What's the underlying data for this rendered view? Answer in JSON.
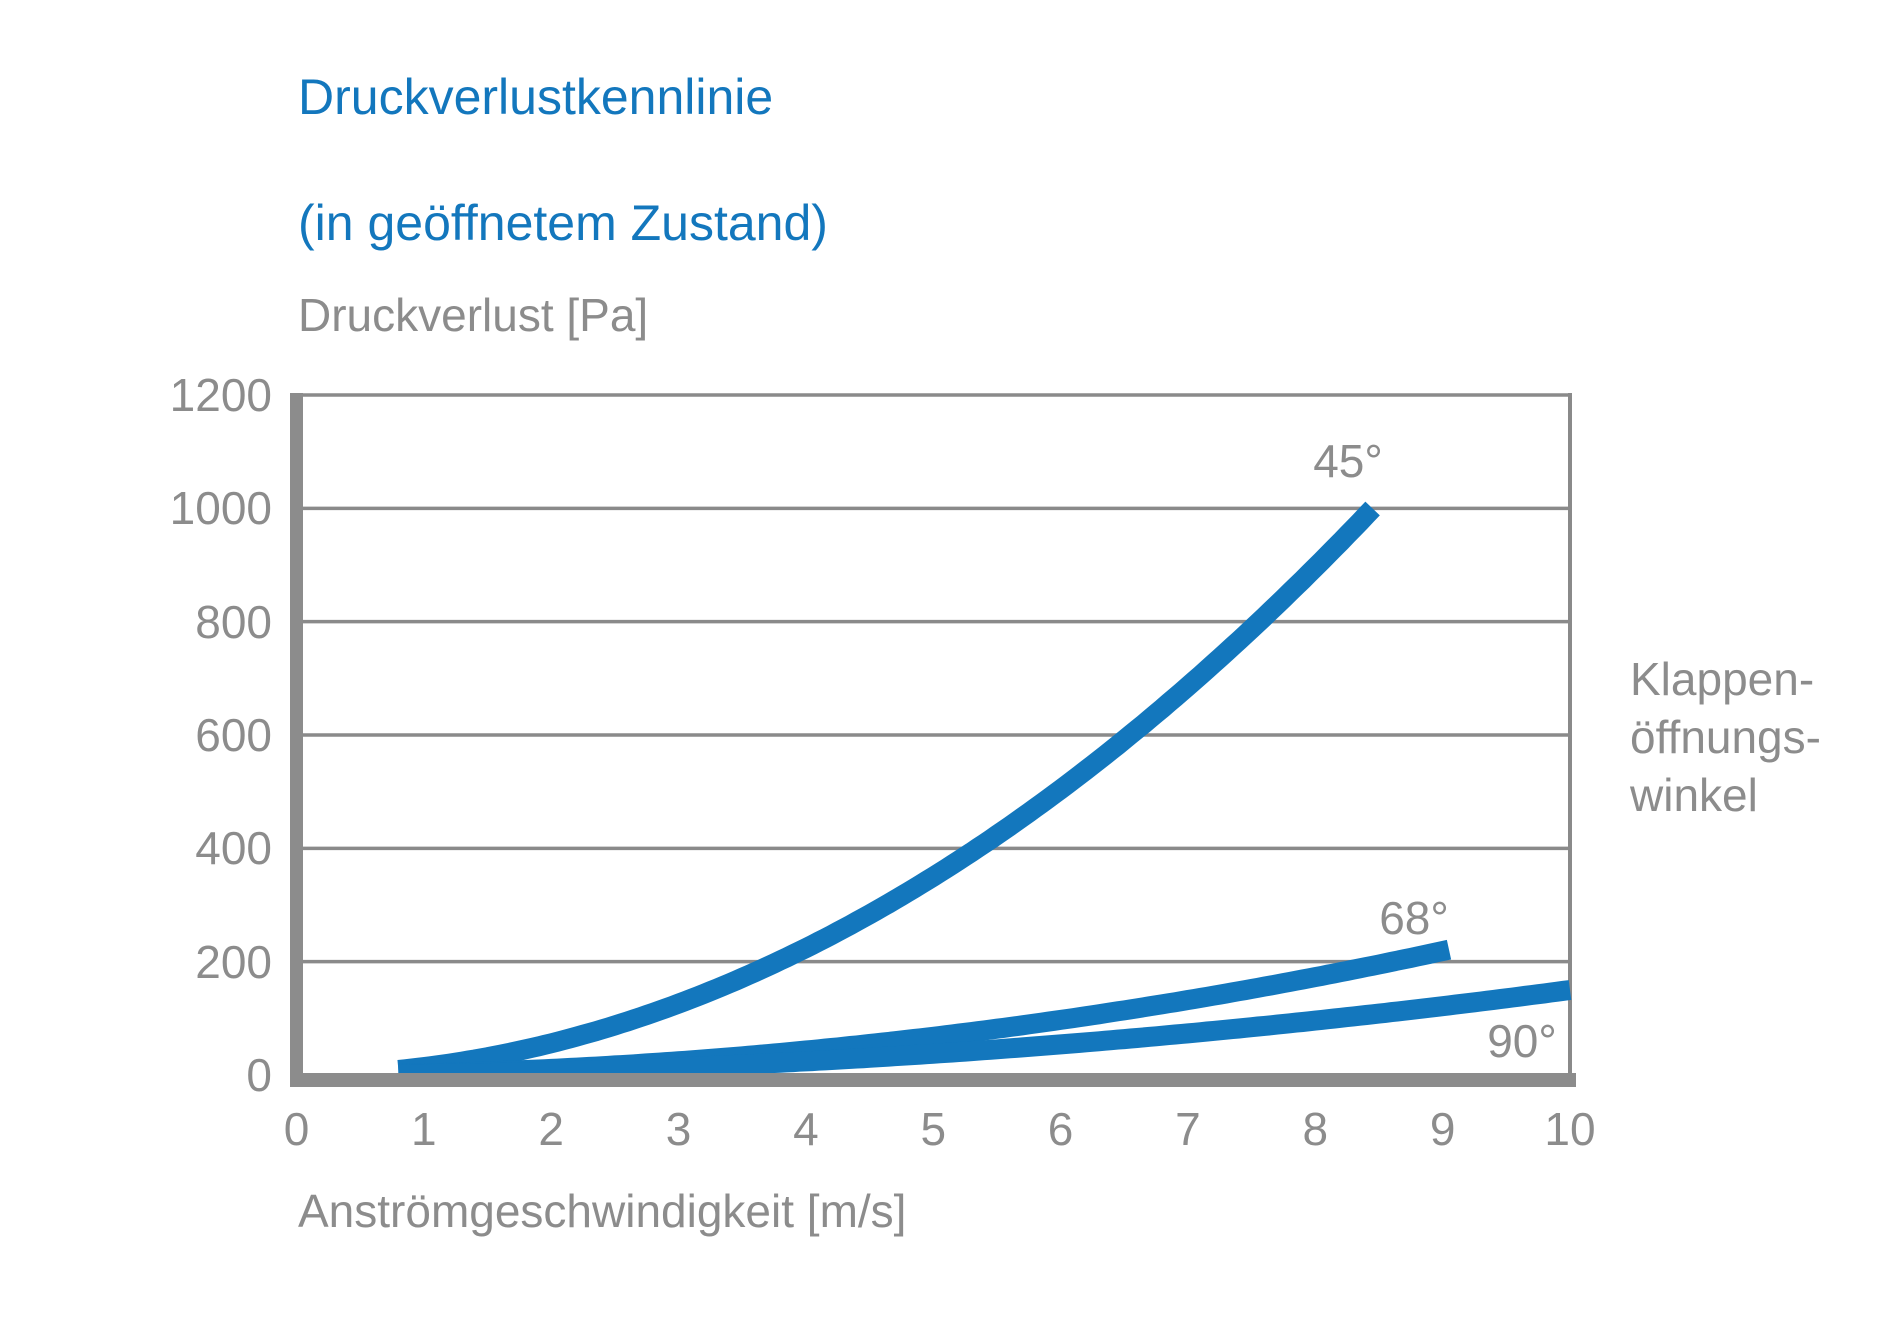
{
  "title": {
    "line1": "Druckverlustkennlinie",
    "line2": "(in geöffnetem Zustand)"
  },
  "y_axis": {
    "title": "Druckverlust [Pa]",
    "ticks": [
      0,
      200,
      400,
      600,
      800,
      1000,
      1200
    ]
  },
  "x_axis": {
    "title": "Anströmgeschwindigkeit [m/s]",
    "ticks": [
      0,
      1,
      2,
      3,
      4,
      5,
      6,
      7,
      8,
      9,
      10
    ]
  },
  "side_label": {
    "line1": "Klappen-",
    "line2": "öffnungs-",
    "line3": "winkel"
  },
  "colors": {
    "curve_blue": "#1377BD",
    "title_blue": "#1377BD",
    "text_gray": "#8C8C8C",
    "axis_bar_gray": "#8C8C8C",
    "grid_gray": "#8A8A8A",
    "background": "#FFFFFF"
  },
  "chart_data": {
    "type": "line",
    "title": "Druckverlustkennlinie (in geöffnetem Zustand)",
    "xlabel": "Anströmgeschwindigkeit [m/s]",
    "ylabel": "Druckverlust [Pa]",
    "xlim": [
      0,
      10
    ],
    "ylim": [
      0,
      1200
    ],
    "grid": "horizontal-only",
    "legend_position": "labels-at-line-ends, side caption right: Klappenöffnungswinkel",
    "series": [
      {
        "label": "45°",
        "model": "quadratic y = a·x²",
        "coefficient": 14,
        "x_start": 0.8,
        "x_end": 8.45,
        "points": [
          [
            1,
            14
          ],
          [
            2,
            56
          ],
          [
            3,
            126
          ],
          [
            4,
            224
          ],
          [
            5,
            350
          ],
          [
            6,
            504
          ],
          [
            7,
            686
          ],
          [
            8,
            896
          ],
          [
            8.45,
            1000
          ]
        ]
      },
      {
        "label": "68°",
        "model": "quadratic y = a·x²",
        "coefficient": 2.7,
        "x_start": 0.8,
        "x_end": 9.05,
        "points": [
          [
            1,
            3
          ],
          [
            2,
            11
          ],
          [
            3,
            24
          ],
          [
            4,
            43
          ],
          [
            5,
            68
          ],
          [
            6,
            97
          ],
          [
            7,
            132
          ],
          [
            8,
            173
          ],
          [
            9,
            219
          ]
        ]
      },
      {
        "label": "90°",
        "model": "quadratic y = a·x²",
        "coefficient": 1.5,
        "x_start": 0.8,
        "x_end": 10,
        "points": [
          [
            1,
            2
          ],
          [
            2,
            6
          ],
          [
            3,
            14
          ],
          [
            4,
            24
          ],
          [
            5,
            38
          ],
          [
            6,
            54
          ],
          [
            7,
            74
          ],
          [
            8,
            96
          ],
          [
            9,
            122
          ],
          [
            10,
            150
          ]
        ]
      }
    ]
  }
}
